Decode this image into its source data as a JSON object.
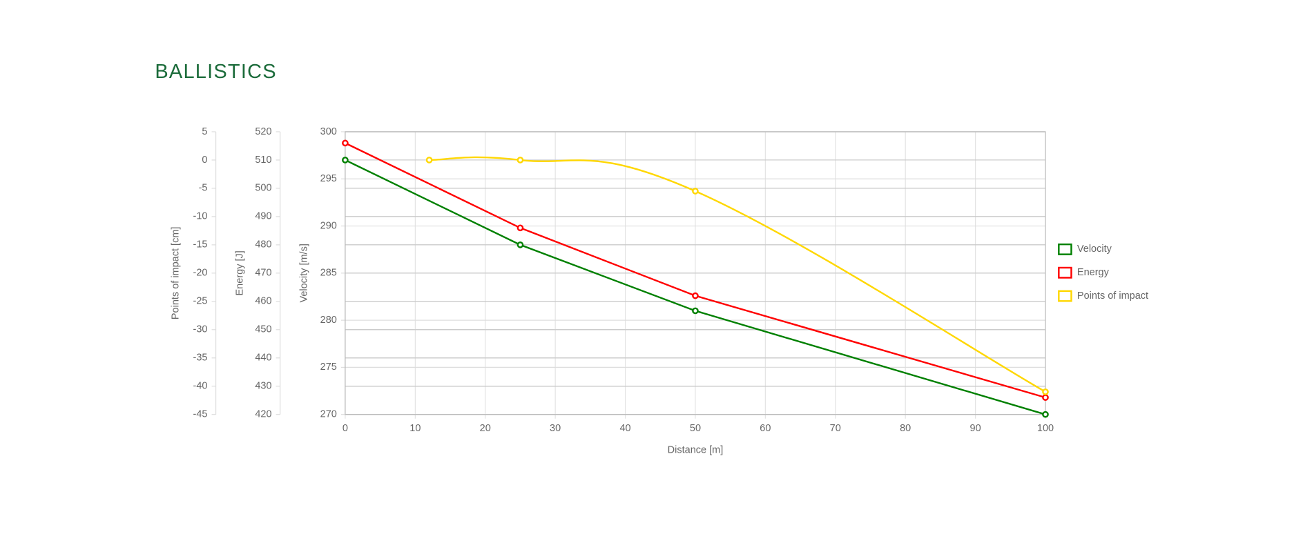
{
  "chart_data": {
    "type": "line",
    "title": "BALLISTICS",
    "x_label": "Distance [m]",
    "y_label": "Velocity [m/s]",
    "y2_label": "Energy [J]",
    "y3_label": "Points of impact [cm]",
    "xlim": [
      0,
      100
    ],
    "xticks": [
      0,
      10,
      20,
      30,
      40,
      50,
      60,
      70,
      80,
      90,
      100
    ],
    "ylim": [
      270,
      300
    ],
    "yticks": [
      270,
      275,
      280,
      285,
      290,
      295,
      300
    ],
    "y2lim": [
      420,
      520
    ],
    "y2ticks": [
      420,
      430,
      440,
      450,
      460,
      470,
      480,
      490,
      500,
      510,
      520
    ],
    "y3lim": [
      -45,
      5
    ],
    "y3ticks": [
      -45,
      -40,
      -35,
      -30,
      -25,
      -20,
      -15,
      -10,
      -5,
      0,
      5
    ],
    "grid": true,
    "legend": "right",
    "series": [
      {
        "name": "Velocity",
        "color": "#008000",
        "x": [
          0,
          25,
          50,
          100
        ],
        "values": [
          297,
          288,
          281,
          270
        ]
      },
      {
        "name": "Energy",
        "color": "#ff0000",
        "axis": "y2",
        "x": [
          0,
          25,
          50,
          100
        ],
        "values": [
          516,
          486,
          462,
          426
        ]
      },
      {
        "name": "Points of impact",
        "color": "#ffd700",
        "axis": "y3",
        "smooth": true,
        "x": [
          12,
          25,
          50,
          100
        ],
        "values": [
          0,
          0,
          -5.5,
          -41
        ]
      }
    ]
  }
}
